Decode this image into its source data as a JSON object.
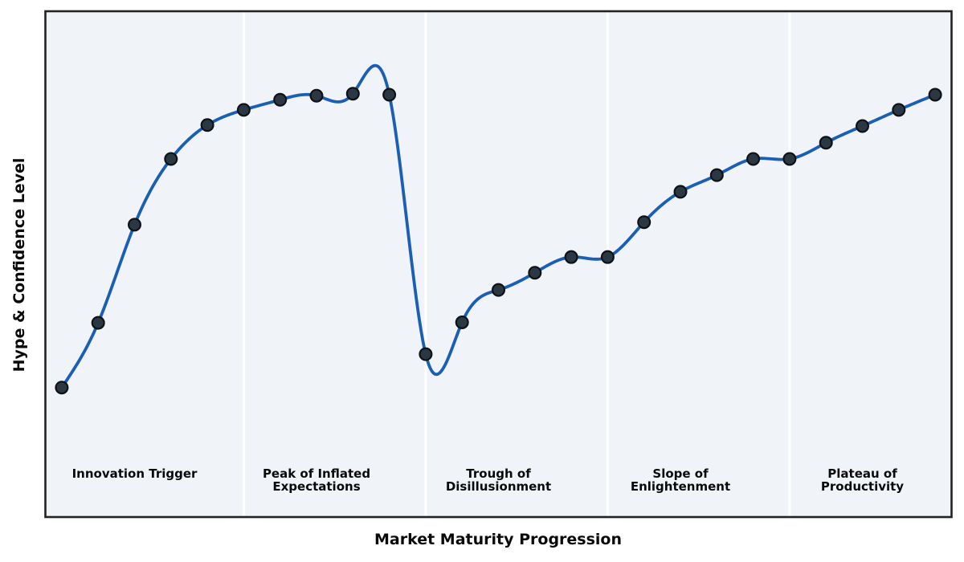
{
  "chart_data": {
    "type": "line",
    "title": "",
    "xlabel": "Market Maturity Progression",
    "ylabel": "Hype & Confidence Level",
    "x": [
      0,
      1,
      2,
      3,
      4,
      5,
      6,
      7,
      8,
      9,
      10,
      11,
      12,
      13,
      14,
      15,
      16,
      17,
      18,
      19,
      20,
      21,
      22,
      23,
      24
    ],
    "series": [
      {
        "name": "hype-confidence-curve",
        "values": [
          25.6,
          38.4,
          57.8,
          70.8,
          77.5,
          80.5,
          82.5,
          83.3,
          83.7,
          83.5,
          32.2,
          38.5,
          44.9,
          48.3,
          51.4,
          51.4,
          58.3,
          64.3,
          67.6,
          70.8,
          70.8,
          74.0,
          77.3,
          80.5,
          83.5
        ]
      }
    ],
    "xlim": [
      -0.45,
      24.45
    ],
    "ylim": [
      0,
      100
    ],
    "grid": false,
    "legend_position": "none",
    "axis_ticks": "none",
    "line_smoothing": "natural-cubic-spline",
    "marker_shape": "circle",
    "phases": [
      {
        "label": "Innovation Trigger",
        "label_center_x": 2
      },
      {
        "label": "Peak of Inflated\nExpectations",
        "label_center_x": 7
      },
      {
        "label": "Trough of\nDisillusionment",
        "label_center_x": 12
      },
      {
        "label": "Slope of\nEnlightenment",
        "label_center_x": 17
      },
      {
        "label": "Plateau of\nProductivity",
        "label_center_x": 22
      }
    ],
    "phase_dividers_x": [
      5,
      10,
      15,
      20
    ],
    "colors": {
      "line": "#1a5eb5",
      "marker_fill": "#2b3742",
      "marker_edge": "#0e1216",
      "plot_bg": "#f0f4f8",
      "frame": "#222222",
      "divider": "#ffffff",
      "label_text": "#0a0a0a",
      "figure_bg": "#ffffff"
    }
  }
}
